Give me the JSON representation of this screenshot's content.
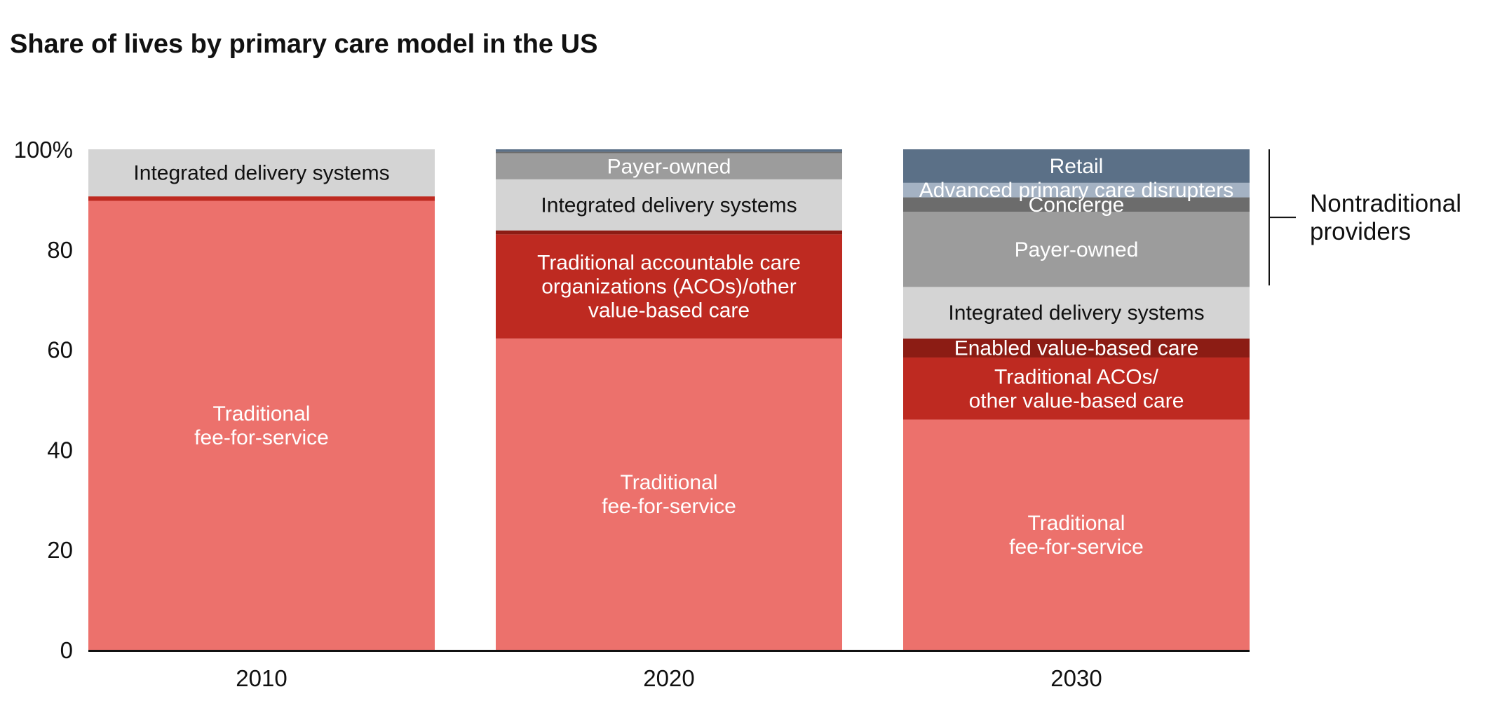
{
  "title": "Share of lives by primary care model in the US",
  "chart_data": {
    "type": "bar",
    "stacked": true,
    "title": "Share of lives by primary care model in the US",
    "xlabel": "",
    "ylabel": "",
    "ylim": [
      0,
      100
    ],
    "yticks": [
      0,
      20,
      40,
      60,
      80,
      100
    ],
    "ytick_labels": [
      "0",
      "20",
      "40",
      "60",
      "80",
      "100%"
    ],
    "categories": [
      "2010",
      "2020",
      "2030"
    ],
    "bars": [
      {
        "category": "2010",
        "segments": [
          {
            "label": "Traditional\nfee-for-service",
            "value": 89.7,
            "color": "#ec716c",
            "text_color": "#ffffff"
          },
          {
            "label": "",
            "value": 0.9,
            "color": "#be2a21",
            "text_color": "#ffffff"
          },
          {
            "label": "Integrated delivery systems",
            "value": 9.4,
            "color": "#d4d4d4",
            "text_color": "#111111"
          }
        ]
      },
      {
        "category": "2020",
        "segments": [
          {
            "label": "Traditional\nfee-for-service",
            "value": 62.2,
            "color": "#ec716c",
            "text_color": "#ffffff"
          },
          {
            "label": "Traditional accountable care\norganizations (ACOs)/other\nvalue-based care",
            "value": 20.8,
            "color": "#be2a21",
            "text_color": "#ffffff"
          },
          {
            "label": "",
            "value": 0.8,
            "color": "#8c1c14",
            "text_color": "#ffffff"
          },
          {
            "label": "Integrated delivery systems",
            "value": 10.2,
            "color": "#d4d4d4",
            "text_color": "#111111"
          },
          {
            "label": "Payer-owned",
            "value": 5.2,
            "color": "#9c9c9c",
            "text_color": "#ffffff"
          },
          {
            "label": "",
            "value": 0.3,
            "color": "#6c6c6c",
            "text_color": "#ffffff"
          },
          {
            "label": "",
            "value": 0.5,
            "color": "#5b7087",
            "text_color": "#ffffff"
          }
        ]
      },
      {
        "category": "2030",
        "segments": [
          {
            "label": "Traditional\nfee-for-service",
            "value": 46,
            "color": "#ec716c",
            "text_color": "#ffffff"
          },
          {
            "label": "Traditional ACOs/\nother value-based care",
            "value": 12.4,
            "color": "#be2a21",
            "text_color": "#ffffff"
          },
          {
            "label": "Enabled value-based care",
            "value": 3.8,
            "color": "#8c1c14",
            "text_color": "#ffffff"
          },
          {
            "label": "Integrated delivery systems",
            "value": 10.3,
            "color": "#d4d4d4",
            "text_color": "#111111"
          },
          {
            "label": "Payer-owned",
            "value": 15,
            "color": "#9c9c9c",
            "text_color": "#ffffff"
          },
          {
            "label": "Concierge",
            "value": 2.9,
            "color": "#6c6c6c",
            "text_color": "#ffffff"
          },
          {
            "label": "Advanced primary care disrupters",
            "value": 2.9,
            "color": "#a4b2c3",
            "text_color": "#ffffff"
          },
          {
            "label": "Retail",
            "value": 6.7,
            "color": "#5b7087",
            "text_color": "#ffffff"
          }
        ]
      }
    ],
    "annotations": [
      {
        "text": "Nontraditional\nproviders",
        "bar": "2030",
        "from": 72.8,
        "to": 100
      }
    ]
  }
}
